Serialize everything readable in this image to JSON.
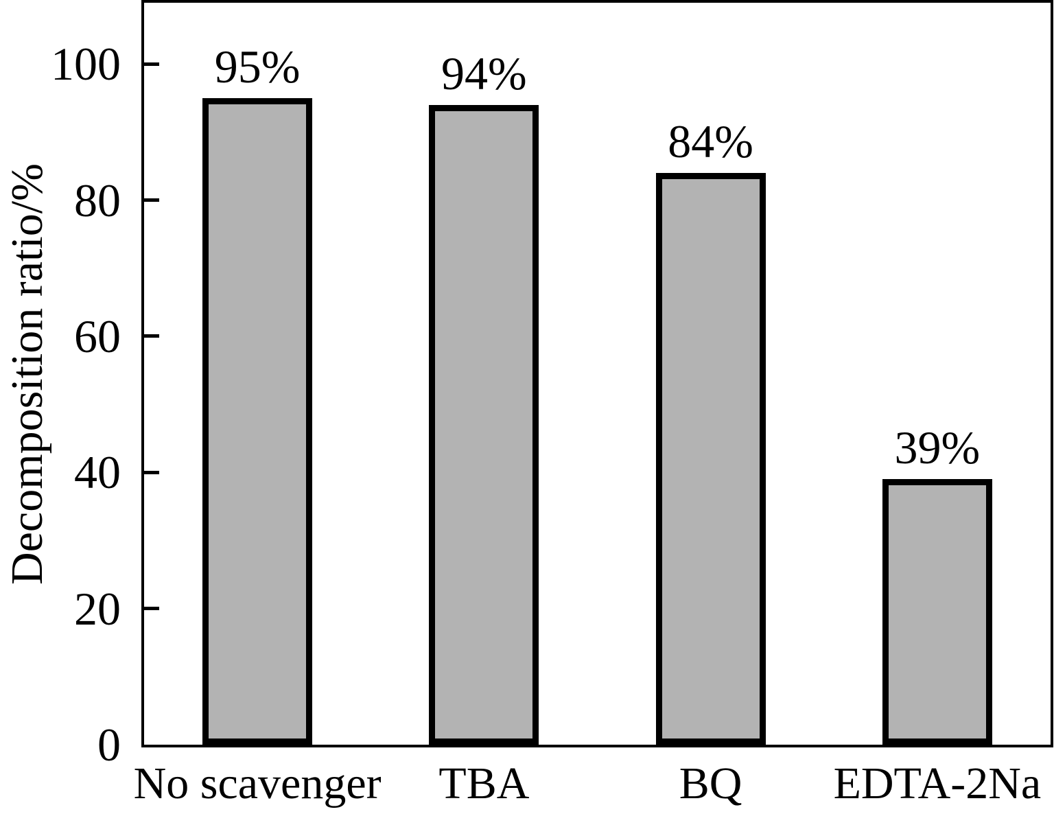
{
  "chart_data": {
    "type": "bar",
    "title": "",
    "categories": [
      "No scavenger",
      "TBA",
      "BQ",
      "EDTA-2Na"
    ],
    "values": [
      95,
      94,
      84,
      39
    ],
    "bar_labels": [
      "95%",
      "94%",
      "84%",
      "39%"
    ],
    "xlabel": "",
    "ylabel": "Decomposition ratio/%",
    "ylim": [
      0,
      109
    ],
    "yticks": [
      0,
      20,
      40,
      60,
      80,
      100
    ],
    "grid": false,
    "legend": null,
    "bar_color": "#b3b3b3",
    "bar_border_color": "#000000",
    "axis_color": "#000000",
    "background_color": "#ffffff"
  }
}
